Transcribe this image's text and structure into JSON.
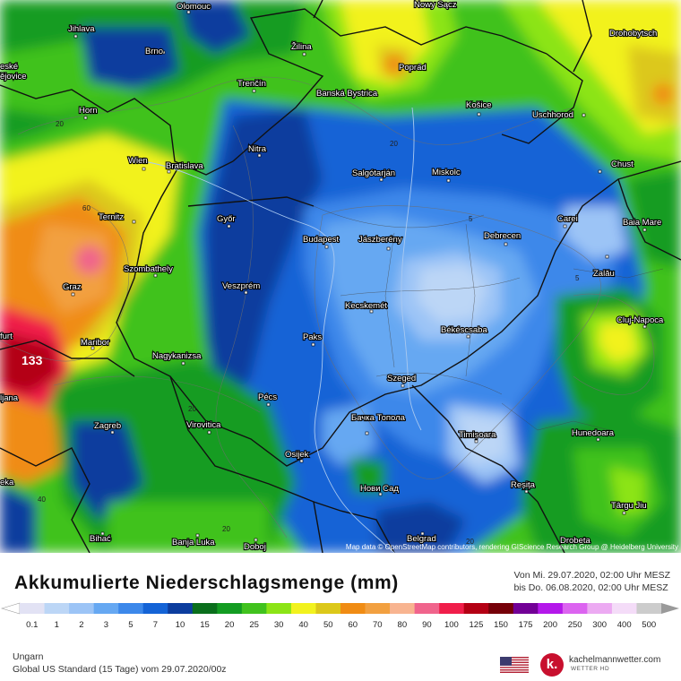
{
  "map": {
    "attribution": "Map data © OpenStreetMap contributors, rendering GIScience Research Group @ Heidelberg University",
    "max_value": "133",
    "cities": [
      {
        "name": "Olomouc"
      },
      {
        "name": "Nowy Sącz"
      },
      {
        "name": "Jihlava"
      },
      {
        "name": "Brno"
      },
      {
        "name": "Žilina"
      },
      {
        "name": "Drohobytsch"
      },
      {
        "name": "eské"
      },
      {
        "name": "ějovice"
      },
      {
        "name": "Poprad"
      },
      {
        "name": "Trenčín"
      },
      {
        "name": "Banská Bystrica"
      },
      {
        "name": "Horn"
      },
      {
        "name": "Košice"
      },
      {
        "name": "Uschhorod"
      },
      {
        "name": "Nitra"
      },
      {
        "name": "Wien"
      },
      {
        "name": "Bratislava"
      },
      {
        "name": "Salgótarján"
      },
      {
        "name": "Miskolc"
      },
      {
        "name": "Chust"
      },
      {
        "name": "Ternitz"
      },
      {
        "name": "Győr"
      },
      {
        "name": "Carei"
      },
      {
        "name": "Baia Mare"
      },
      {
        "name": "Budapest"
      },
      {
        "name": "Jászberény"
      },
      {
        "name": "Debrecen"
      },
      {
        "name": "Szombathely"
      },
      {
        "name": "Zalău"
      },
      {
        "name": "Graz"
      },
      {
        "name": "Veszprém"
      },
      {
        "name": "Kecskemét"
      },
      {
        "name": "Cluj-Napoca"
      },
      {
        "name": "furt"
      },
      {
        "name": "Maribor"
      },
      {
        "name": "Paks"
      },
      {
        "name": "Békéscsaba"
      },
      {
        "name": "Nagykanizsa"
      },
      {
        "name": "Szeged"
      },
      {
        "name": "ljana"
      },
      {
        "name": "Pécs"
      },
      {
        "name": "Zagreb"
      },
      {
        "name": "Virovitica"
      },
      {
        "name": "Бачка Топола"
      },
      {
        "name": "Timișoara"
      },
      {
        "name": "Hunedoara"
      },
      {
        "name": "Osijek"
      },
      {
        "name": "eka"
      },
      {
        "name": "Нови Сад"
      },
      {
        "name": "Reșița"
      },
      {
        "name": "Târgu Jiu"
      },
      {
        "name": "Bihać"
      },
      {
        "name": "Banja Luka"
      },
      {
        "name": "Doboj"
      },
      {
        "name": "Belgrad"
      },
      {
        "name": "Drobeta"
      }
    ],
    "contours": [
      "20",
      "20",
      "20",
      "60",
      "5",
      "5",
      "20",
      "40",
      "20",
      "20"
    ]
  },
  "legend": {
    "title": "Akkumulierte Niederschlagsmenge (mm)",
    "period_from": "Von Mi. 29.07.2020, 02:00 Uhr MESZ",
    "period_to": "bis Do. 06.08.2020, 02:00 Uhr MESZ",
    "ticks": [
      "0.1",
      "1",
      "2",
      "3",
      "5",
      "7",
      "10",
      "15",
      "20",
      "25",
      "30",
      "40",
      "50",
      "60",
      "70",
      "80",
      "90",
      "100",
      "125",
      "150",
      "175",
      "200",
      "250",
      "300",
      "400",
      "500"
    ],
    "colors": [
      "#e2e2f4",
      "#bcd6f6",
      "#9cc4f6",
      "#66a8f2",
      "#3c88ea",
      "#1463d6",
      "#0c3d9e",
      "#0a6f1c",
      "#139c22",
      "#41c21e",
      "#8ce416",
      "#f2f21e",
      "#dcc81a",
      "#f08c14",
      "#f2a040",
      "#f8b490",
      "#f0648c",
      "#f01e4a",
      "#b40014",
      "#760008",
      "#720096",
      "#b418ea",
      "#dc64f0",
      "#ecaaf2",
      "#f4dcf8",
      "#cccccc"
    ],
    "arrow_left": "#ffffff",
    "arrow_right": "#9a9a9a"
  },
  "info": {
    "region": "Ungarn",
    "model": "Global US Standard (15 Tage) vom  29.07.2020/00z",
    "brand": "kachelmannwetter.com",
    "brand_sub": "WETTER HD",
    "logo_letter": "k."
  }
}
